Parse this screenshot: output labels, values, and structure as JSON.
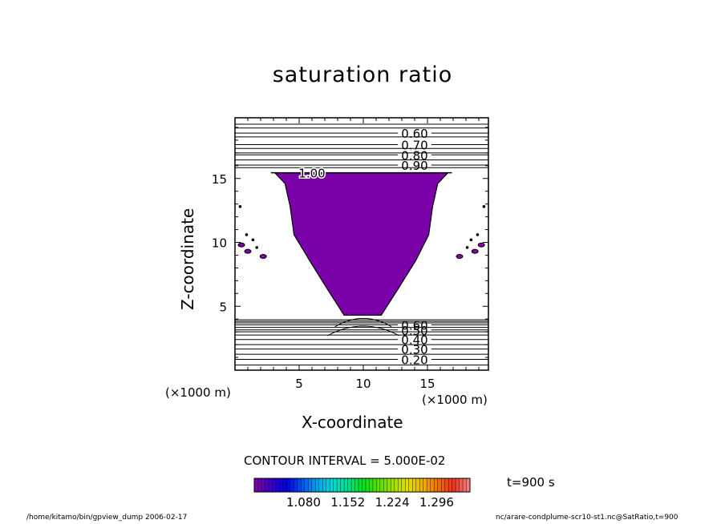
{
  "chart_data": {
    "type": "contour",
    "title": "saturation ratio",
    "xlabel": "X-coordinate",
    "ylabel": "Z-coordinate",
    "x_unit_label": "(×1000 m)",
    "x_unit_label_right": "(×1000 m)",
    "xlim": [
      0,
      19.75
    ],
    "ylim": [
      0,
      19.75
    ],
    "x_ticks": [
      5,
      10,
      15
    ],
    "y_ticks": [
      5,
      10,
      15
    ],
    "contour_interval_label": "CONTOUR INTERVAL = 5.000E-02",
    "time_label": "t=900 s",
    "upper_contours": [
      {
        "level": 0.6,
        "z": 18.55,
        "label": "0.60"
      },
      {
        "level": 0.7,
        "z": 17.65,
        "label": "0.70"
      },
      {
        "level": 0.8,
        "z": 16.85,
        "label": "0.80"
      },
      {
        "level": 0.9,
        "z": 16.05,
        "label": "0.90"
      }
    ],
    "upper_unlabeled_contour_z": [
      19.25,
      18.95,
      18.25,
      17.35,
      17.0,
      16.45,
      15.85
    ],
    "supersaturated_top_contour": {
      "level": 1.0,
      "z": 15.45,
      "label": "1.00"
    },
    "plume": {
      "fill_color": "#7a00a8",
      "outline": [
        [
          3.1,
          15.45
        ],
        [
          16.6,
          15.45
        ],
        [
          15.8,
          14.6
        ],
        [
          15.4,
          12.8
        ],
        [
          15.1,
          10.6
        ],
        [
          14.1,
          8.6
        ],
        [
          12.8,
          6.5
        ],
        [
          11.4,
          4.3
        ],
        [
          8.5,
          4.3
        ],
        [
          7.1,
          6.5
        ],
        [
          5.8,
          8.6
        ],
        [
          4.6,
          10.6
        ],
        [
          4.3,
          12.8
        ],
        [
          3.9,
          14.6
        ]
      ]
    },
    "lower_contours": [
      {
        "level": 0.2,
        "z": 0.85,
        "label": "0.20"
      },
      {
        "level": 0.3,
        "z": 1.65,
        "label": "0.30"
      },
      {
        "level": 0.4,
        "z": 2.4,
        "label": "0.40"
      },
      {
        "level": 0.5,
        "z": 3.15,
        "label": "0.50"
      },
      {
        "level": 0.6,
        "z": 3.55,
        "label": "0.60"
      }
    ],
    "lower_unlabeled_contour_z": [
      0.4,
      1.25,
      2.0,
      2.75,
      3.0,
      3.35,
      3.7,
      3.82,
      3.94
    ],
    "colorbar": {
      "tick_labels": [
        "1.080",
        "1.152",
        "1.224",
        "1.296"
      ],
      "tick_values": [
        1.08,
        1.152,
        1.224,
        1.296
      ],
      "range": [
        1.0,
        1.35
      ],
      "colors": [
        "#7a00a8",
        "#3a00c8",
        "#0000e0",
        "#0050f0",
        "#00a0f0",
        "#00d8d8",
        "#00e090",
        "#00e020",
        "#50e000",
        "#a0e000",
        "#e0e000",
        "#f0b000",
        "#f07000",
        "#f03020",
        "#f08080"
      ]
    }
  },
  "footer": {
    "left": "/home/kitamo/bin/gpview_dump  2006-02-17",
    "right": "nc/arare-condplume-scr10-st1.nc@SatRatio,t=900"
  }
}
